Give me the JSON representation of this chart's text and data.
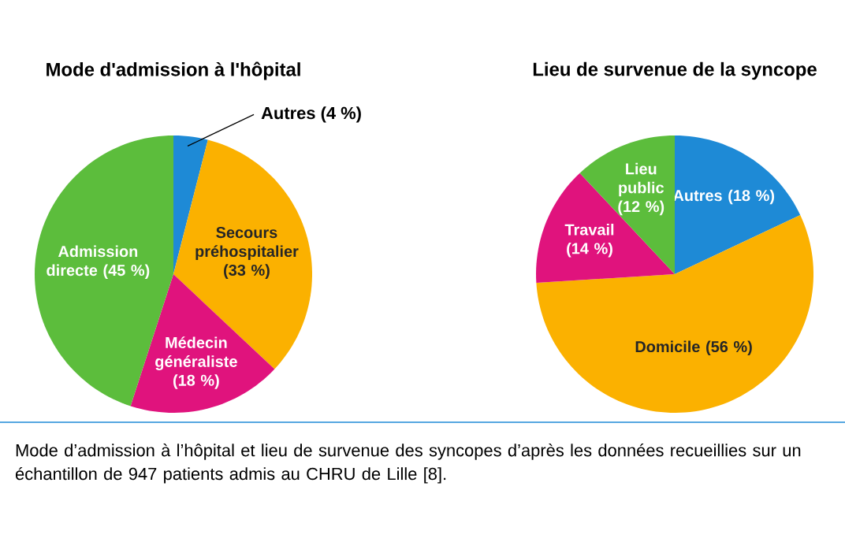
{
  "chart_data": [
    {
      "type": "pie",
      "title": "Mode d'admission à l'hôpital",
      "categories": [
        "Autres",
        "Secours préhospitalier",
        "Médecin généraliste",
        "Admission directe"
      ],
      "values": [
        4,
        33,
        18,
        45
      ],
      "value_labels": [
        "(4 %)",
        "(33 %)",
        "(18 %)",
        "(45 %)"
      ],
      "colors": [
        "#1e8ad6",
        "#fbb100",
        "#e0137d",
        "#5cbd3c"
      ],
      "annotations": [
        "Mode d’admission à l’hôpital et lieu de survenue des syncopes d’après les données recueillies sur un échantillon de 947 patients admis au CHRU de Lille [8]."
      ]
    },
    {
      "type": "pie",
      "title": "Lieu de survenue de la syncope",
      "categories": [
        "Autres",
        "Domicile",
        "Travail",
        "Lieu public"
      ],
      "values": [
        18,
        56,
        14,
        12
      ],
      "value_labels": [
        "(18 %)",
        "(56 %)",
        "(14 %)",
        "(12 %)"
      ],
      "colors": [
        "#1e8ad6",
        "#fbb100",
        "#e0137d",
        "#5cbd3c"
      ]
    }
  ]
}
